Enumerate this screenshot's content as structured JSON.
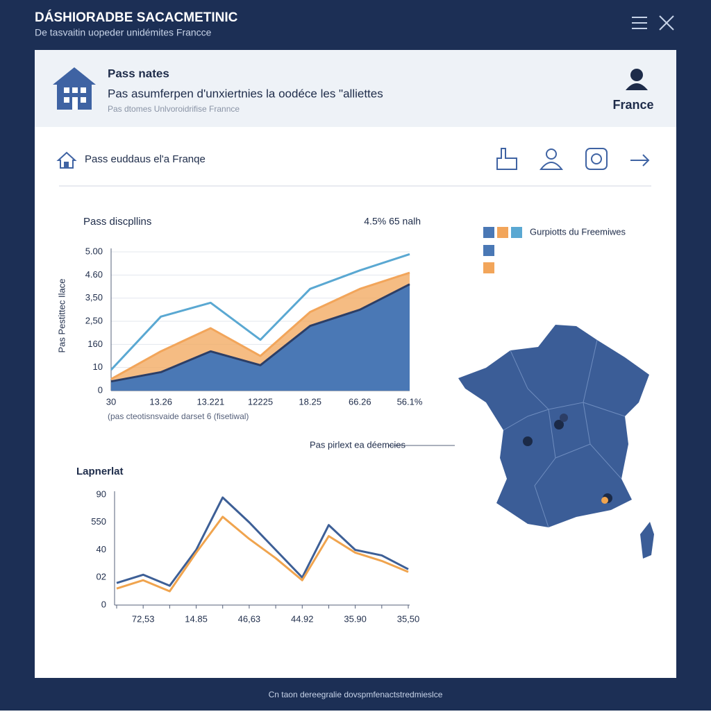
{
  "header": {
    "title": "DÁSHIORADBE SACACMETINIC",
    "subtitle": "De tasvaitin uopeder unidémites Francce"
  },
  "card": {
    "title": "Pass nates",
    "text": "Pas asumferpen d'unxiertnies la oodéce les \"alliettes",
    "subtitle": "Pas dtomes Unlvoroidrifise Frannce",
    "location": "France"
  },
  "section": {
    "title": "Pass euddaus el'a Franqe"
  },
  "map": {
    "annotation": "Pas pirlext ea déemcies"
  },
  "footer": {
    "text": "Cn taon dereegralie dovspmfenactstredmieslce"
  },
  "chart_data": [
    {
      "type": "area",
      "title": "Pass discpllins",
      "annotation": "4.5% 65 nalh",
      "y_label": "Pas Pestittec Ilace",
      "x_label": "(pas cteotisnsvaide darset 6 (fisetiwal)",
      "legend": "Gurpiotts du Freemiwes",
      "grid": true,
      "categories": [
        "30",
        "13.26",
        "13.221",
        "12225",
        "18.25",
        "66.26",
        "56.1%"
      ],
      "ylim": [
        0,
        6
      ],
      "yticks": [
        0,
        {
          "value": 1,
          "label": "10"
        },
        {
          "value": 2,
          "label": "160"
        },
        {
          "value": 3,
          "label": "2,50"
        },
        {
          "value": 4,
          "label": "3,50"
        },
        {
          "value": 5,
          "label": "4.60"
        },
        {
          "value": 6,
          "label": "5.00"
        }
      ],
      "series": [
        {
          "style": "line",
          "color": "#5aa8d2",
          "values": [
            0.9,
            3.2,
            3.8,
            2.2,
            4.4,
            5.2,
            5.9
          ]
        },
        {
          "style": "area",
          "color": "#f2a55a",
          "values": [
            0.5,
            1.7,
            2.7,
            1.5,
            3.4,
            4.4,
            5.1
          ]
        },
        {
          "style": "area",
          "color": "#4a78b5",
          "values": [
            0.4,
            0.8,
            1.7,
            1.1,
            2.8,
            3.5,
            4.6
          ]
        }
      ]
    },
    {
      "type": "line",
      "title": "Lapnerlat",
      "grid": false,
      "categories": [
        null,
        "72,53",
        null,
        "14.85",
        null,
        "46,63",
        null,
        "44.92",
        null,
        "35.90",
        null,
        "35,50"
      ],
      "ylim": [
        0,
        4
      ],
      "yticks": [
        0,
        {
          "value": 1,
          "label": "02"
        },
        {
          "value": 2,
          "label": "40"
        },
        {
          "value": 3,
          "label": "550"
        },
        {
          "value": 4,
          "label": "90"
        }
      ],
      "series": [
        {
          "style": "line",
          "color": "#3d5f96",
          "values": [
            0.8,
            1.1,
            0.7,
            2.0,
            3.9,
            3.0,
            2.0,
            1.0,
            2.9,
            2.0,
            1.8,
            1.3
          ]
        },
        {
          "style": "line",
          "color": "#f0a44e",
          "values": [
            0.6,
            0.9,
            0.5,
            1.9,
            3.2,
            2.4,
            1.7,
            0.9,
            2.5,
            1.9,
            1.6,
            1.2
          ]
        }
      ]
    }
  ]
}
